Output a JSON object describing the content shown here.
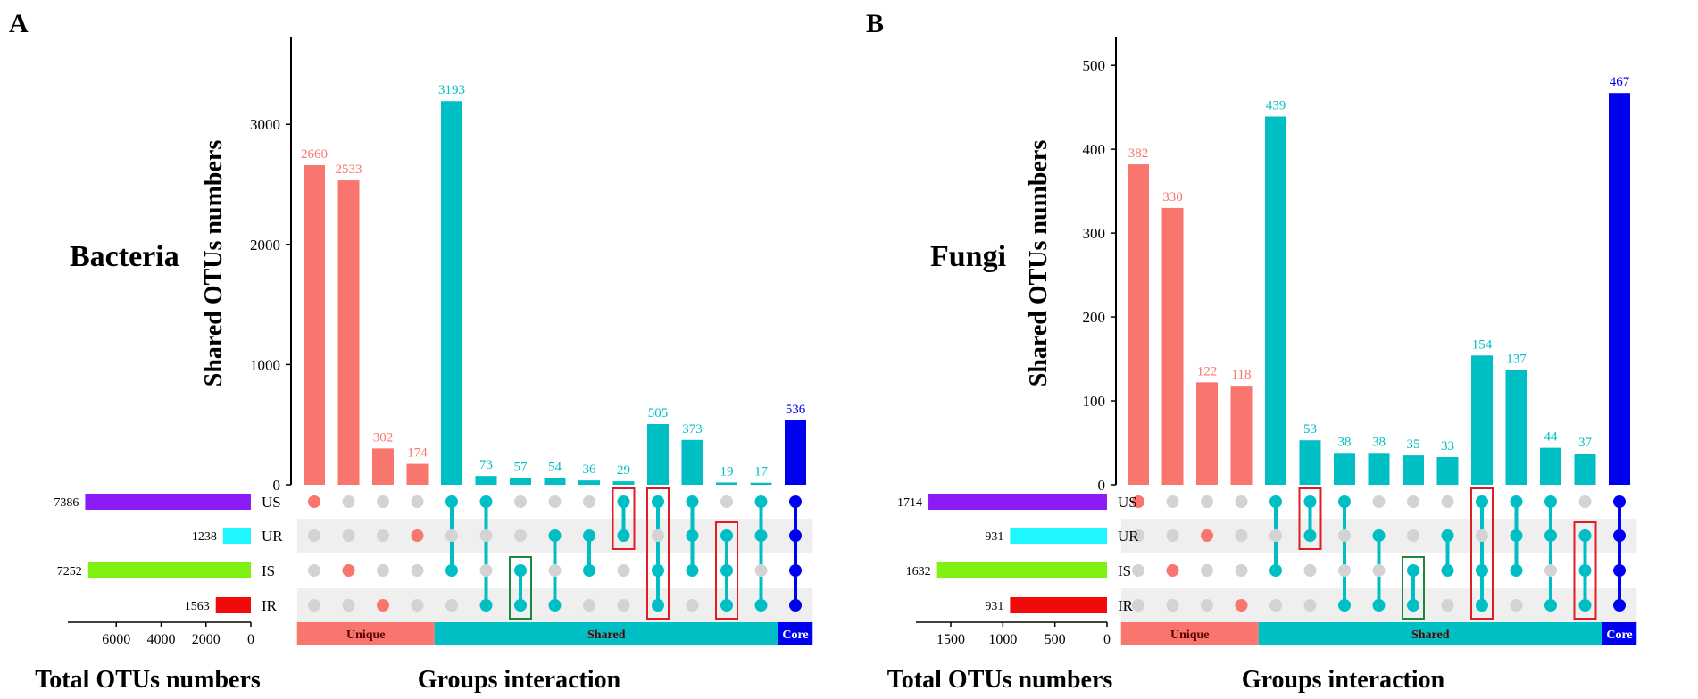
{
  "colors": {
    "unique": "#f8766d",
    "shared": "#00bfc4",
    "core": "#0000f0",
    "dot_off": "#d3d3d3",
    "row_band": "#efefef",
    "highlight_red": "#e01c24",
    "highlight_green": "#1a8a3a",
    "set_US": "#8b1cf7",
    "set_UR": "#1ef7ff",
    "set_IS": "#80f212",
    "set_IR": "#f00a0a"
  },
  "common": {
    "y_axis_label": "Shared OTUs numbers",
    "x_axis_label": "Groups interaction",
    "set_axis_label": "Total OTUs numbers",
    "sets": [
      "US",
      "UR",
      "IS",
      "IR"
    ],
    "category_unique": "Unique",
    "category_shared": "Shared",
    "category_core": "Core"
  },
  "chart_data": [
    {
      "type": "bar",
      "panel_label": "A",
      "title": "Bacteria",
      "ylim": [
        0,
        3700
      ],
      "yticks": [
        0,
        1000,
        2000,
        3000
      ],
      "ytick_labels": [
        "0",
        "1000",
        "2000",
        "3000"
      ],
      "set_sizes": [
        7386,
        1238,
        7252,
        1563
      ],
      "set_size_labels": [
        "7386",
        "1238",
        "7252",
        "1563"
      ],
      "set_xlim": [
        0,
        8000
      ],
      "set_xticks": [
        6000,
        4000,
        2000,
        0
      ],
      "set_xtick_labels": [
        "6000",
        "4000",
        "2000",
        "0"
      ],
      "intersections": [
        {
          "sets": [
            "US"
          ],
          "value": 2660,
          "label": "2660",
          "category": "unique"
        },
        {
          "sets": [
            "IS"
          ],
          "value": 2533,
          "label": "2533",
          "category": "unique"
        },
        {
          "sets": [
            "IR"
          ],
          "value": 302,
          "label": "302",
          "category": "unique"
        },
        {
          "sets": [
            "UR"
          ],
          "value": 174,
          "label": "174",
          "category": "unique"
        },
        {
          "sets": [
            "US",
            "IS"
          ],
          "value": 3193,
          "label": "3193",
          "category": "shared"
        },
        {
          "sets": [
            "US",
            "IR"
          ],
          "value": 73,
          "label": "73",
          "category": "shared"
        },
        {
          "sets": [
            "IS",
            "IR"
          ],
          "value": 57,
          "label": "57",
          "category": "shared",
          "highlight": "green"
        },
        {
          "sets": [
            "UR",
            "IR"
          ],
          "value": 54,
          "label": "54",
          "category": "shared"
        },
        {
          "sets": [
            "UR",
            "IS"
          ],
          "value": 36,
          "label": "36",
          "category": "shared"
        },
        {
          "sets": [
            "US",
            "UR"
          ],
          "value": 29,
          "label": "29",
          "category": "shared",
          "highlight": "red"
        },
        {
          "sets": [
            "US",
            "IS",
            "IR"
          ],
          "value": 505,
          "label": "505",
          "category": "shared",
          "highlight": "red"
        },
        {
          "sets": [
            "US",
            "UR",
            "IS"
          ],
          "value": 373,
          "label": "373",
          "category": "shared"
        },
        {
          "sets": [
            "UR",
            "IS",
            "IR"
          ],
          "value": 19,
          "label": "19",
          "category": "shared",
          "highlight": "red"
        },
        {
          "sets": [
            "US",
            "UR",
            "IR"
          ],
          "value": 17,
          "label": "17",
          "category": "shared"
        },
        {
          "sets": [
            "US",
            "UR",
            "IS",
            "IR"
          ],
          "value": 536,
          "label": "536",
          "category": "core"
        }
      ]
    },
    {
      "type": "bar",
      "panel_label": "B",
      "title": "Fungi",
      "ylim": [
        0,
        530
      ],
      "yticks": [
        0,
        100,
        200,
        300,
        400,
        500
      ],
      "ytick_labels": [
        "0",
        "100",
        "200",
        "300",
        "400",
        "500"
      ],
      "set_sizes": [
        1714,
        931,
        1632,
        931
      ],
      "set_size_labels": [
        "1714",
        "931",
        "1632",
        "931"
      ],
      "set_xlim": [
        0,
        1800
      ],
      "set_xticks": [
        1500,
        1000,
        500,
        0
      ],
      "set_xtick_labels": [
        "1500",
        "1000",
        "500",
        "0"
      ],
      "intersections": [
        {
          "sets": [
            "US"
          ],
          "value": 382,
          "label": "382",
          "category": "unique"
        },
        {
          "sets": [
            "IS"
          ],
          "value": 330,
          "label": "330",
          "category": "unique"
        },
        {
          "sets": [
            "UR"
          ],
          "value": 122,
          "label": "122",
          "category": "unique"
        },
        {
          "sets": [
            "IR"
          ],
          "value": 118,
          "label": "118",
          "category": "unique"
        },
        {
          "sets": [
            "US",
            "IS"
          ],
          "value": 439,
          "label": "439",
          "category": "shared"
        },
        {
          "sets": [
            "US",
            "UR"
          ],
          "value": 53,
          "label": "53",
          "category": "shared",
          "highlight": "red"
        },
        {
          "sets": [
            "US",
            "IR"
          ],
          "value": 38,
          "label": "38",
          "category": "shared"
        },
        {
          "sets": [
            "UR",
            "IR"
          ],
          "value": 38,
          "label": "38",
          "category": "shared"
        },
        {
          "sets": [
            "IS",
            "IR"
          ],
          "value": 35,
          "label": "35",
          "category": "shared",
          "highlight": "green"
        },
        {
          "sets": [
            "UR",
            "IS"
          ],
          "value": 33,
          "label": "33",
          "category": "shared"
        },
        {
          "sets": [
            "US",
            "IS",
            "IR"
          ],
          "value": 154,
          "label": "154",
          "category": "shared",
          "highlight": "red"
        },
        {
          "sets": [
            "US",
            "UR",
            "IS"
          ],
          "value": 137,
          "label": "137",
          "category": "shared"
        },
        {
          "sets": [
            "US",
            "UR",
            "IR"
          ],
          "value": 44,
          "label": "44",
          "category": "shared"
        },
        {
          "sets": [
            "UR",
            "IS",
            "IR"
          ],
          "value": 37,
          "label": "37",
          "category": "shared",
          "highlight": "red"
        },
        {
          "sets": [
            "US",
            "UR",
            "IS",
            "IR"
          ],
          "value": 467,
          "label": "467",
          "category": "core"
        }
      ]
    }
  ]
}
